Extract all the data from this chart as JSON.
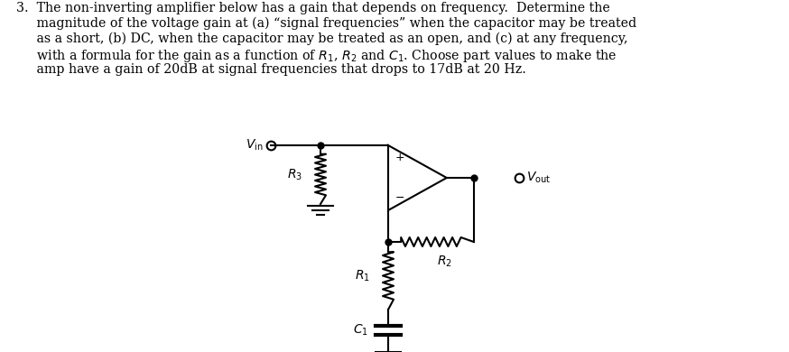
{
  "background_color": "#ffffff",
  "text_color": "#000000",
  "circuit_color": "#000000",
  "figsize": [
    8.74,
    3.9
  ],
  "dpi": 100,
  "text_lines": [
    "3.  The non-inverting amplifier below has a gain that depends on frequency.  Determine the",
    "     magnitude of the voltage gain at (a) “signal frequencies” when the capacitor may be treated",
    "     as a short, (b) DC, when the capacitor may be treated as an open, and (c) at any frequency,",
    "     with a formula for the gain as a function of $R_1$, $R_2$ and $C_1$. Choose part values to make the",
    "     amp have a gain of 20dB at signal frequencies that drops to 17dB at 20 Hz."
  ]
}
